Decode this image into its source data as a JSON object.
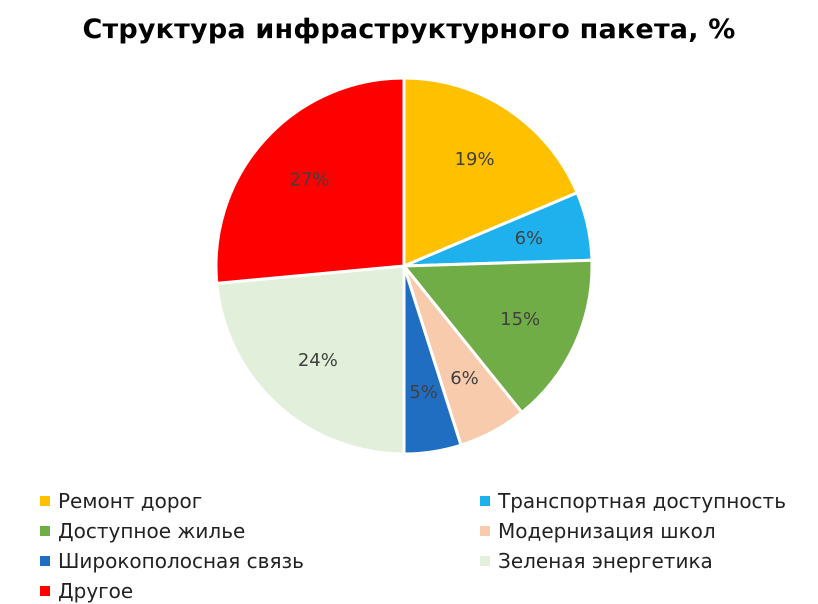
{
  "chart_data": {
    "type": "pie",
    "title": "Структура инфраструктурного пакета, %",
    "categories": [
      "Ремонт дорог",
      "Транспортная доступность",
      "Доступное жилье",
      "Модернизация школ",
      "Широкополосная связь",
      "Зеленая энергетика",
      "Другое"
    ],
    "values": [
      19,
      6,
      15,
      6,
      5,
      24,
      27
    ],
    "labels": [
      "19%",
      "6%",
      "15%",
      "6%",
      "5%",
      "24%",
      "27%"
    ],
    "colors": [
      "#FFC000",
      "#1FB1EE",
      "#70AD47",
      "#F8CBAD",
      "#1F6EC2",
      "#E2EFDA",
      "#FF0000"
    ],
    "legend_position": "bottom"
  }
}
